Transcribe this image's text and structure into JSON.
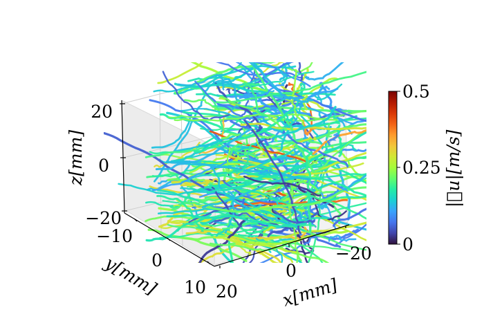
{
  "chart_data": {
    "type": "3d-trajectory-lines",
    "axes": {
      "x": {
        "label": "x[mm]",
        "range": [
          -25,
          25
        ],
        "ticks": [
          "20",
          "0",
          "−20"
        ]
      },
      "y": {
        "label": "y[mm]",
        "range": [
          -15,
          12
        ],
        "ticks": [
          "−10",
          "0",
          "10"
        ]
      },
      "z": {
        "label": "z[mm]",
        "range": [
          -20,
          25
        ],
        "ticks": [
          "20",
          "0",
          "−20"
        ]
      }
    },
    "colorbar": {
      "label": "|⃗u|[m/s]",
      "range": [
        0,
        0.5
      ],
      "ticks": [
        "0",
        "0.25",
        "0.5"
      ],
      "colormap": "turbo",
      "stops": [
        "#30123b",
        "#4145ab",
        "#4675ed",
        "#39a2fc",
        "#1bcfd4",
        "#24eca6",
        "#61fc6c",
        "#a4fc3b",
        "#d1e834",
        "#f3c63a",
        "#fe9b2d",
        "#f36315",
        "#d93806",
        "#b11901",
        "#7a0402"
      ]
    },
    "trajectory_count": 320,
    "speed_range_observed": [
      0.02,
      0.43
    ],
    "grid": true,
    "pane_color": "#f2f2f2"
  }
}
